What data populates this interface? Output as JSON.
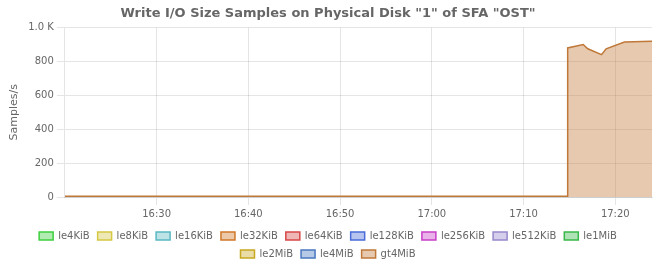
{
  "chart_data": {
    "type": "area",
    "title": "Write I/O Size Samples on Physical Disk \"1\" of SFA \"OST\"",
    "y_label": "Samples/s",
    "x": [
      -2,
      52.8,
      52.81,
      54.5,
      55.0,
      56.5,
      57.0,
      59.0,
      62
    ],
    "series": [
      {
        "name": "le4KiB",
        "color": "#3ecf3e",
        "values": [
          null,
          null,
          null,
          null,
          null,
          null,
          null,
          null,
          null
        ]
      },
      {
        "name": "le8KiB",
        "color": "#d4c843",
        "values": [
          null,
          null,
          null,
          null,
          null,
          null,
          null,
          null,
          null
        ]
      },
      {
        "name": "le16KiB",
        "color": "#5ab8c4",
        "values": [
          null,
          null,
          null,
          null,
          null,
          null,
          null,
          null,
          null
        ]
      },
      {
        "name": "le32KiB",
        "color": "#d07828",
        "values": [
          null,
          null,
          null,
          null,
          null,
          null,
          null,
          null,
          null
        ]
      },
      {
        "name": "le64KiB",
        "color": "#d84848",
        "values": [
          null,
          null,
          null,
          null,
          null,
          null,
          null,
          null,
          null
        ]
      },
      {
        "name": "le128KiB",
        "color": "#4a6cd8",
        "values": [
          null,
          null,
          null,
          null,
          null,
          null,
          null,
          null,
          null
        ]
      },
      {
        "name": "le256KiB",
        "color": "#c840c8",
        "values": [
          null,
          null,
          null,
          null,
          null,
          null,
          null,
          null,
          null
        ]
      },
      {
        "name": "le512KiB",
        "color": "#9888cc",
        "values": [
          null,
          null,
          null,
          null,
          null,
          null,
          null,
          null,
          null
        ]
      },
      {
        "name": "le1MiB",
        "color": "#38b848",
        "values": [
          null,
          null,
          null,
          null,
          null,
          null,
          null,
          null,
          null
        ]
      },
      {
        "name": "le2MiB",
        "color": "#c8a820",
        "values": [
          null,
          null,
          null,
          null,
          null,
          null,
          null,
          null,
          null
        ]
      },
      {
        "name": "le4MiB",
        "color": "#4878c0",
        "values": [
          null,
          null,
          null,
          null,
          null,
          null,
          null,
          null,
          null
        ]
      },
      {
        "name": "gt4MiB",
        "color": "#c07838",
        "values": [
          5,
          5,
          880,
          900,
          875,
          840,
          875,
          915,
          920
        ]
      }
    ],
    "xlim": [
      -2,
      62
    ],
    "xticks": [
      {
        "value": 8,
        "label": "16:30"
      },
      {
        "value": 18,
        "label": "16:40"
      },
      {
        "value": 28,
        "label": "16:50"
      },
      {
        "value": 38,
        "label": "17:00"
      },
      {
        "value": 48,
        "label": "17:10"
      },
      {
        "value": 58,
        "label": "17:20"
      }
    ],
    "ylim": [
      0,
      1000
    ],
    "yticks": [
      0,
      200,
      400,
      600,
      800,
      {
        "value": 1000,
        "label": "1.0 K"
      }
    ],
    "grid": true,
    "legend": "bottom"
  }
}
